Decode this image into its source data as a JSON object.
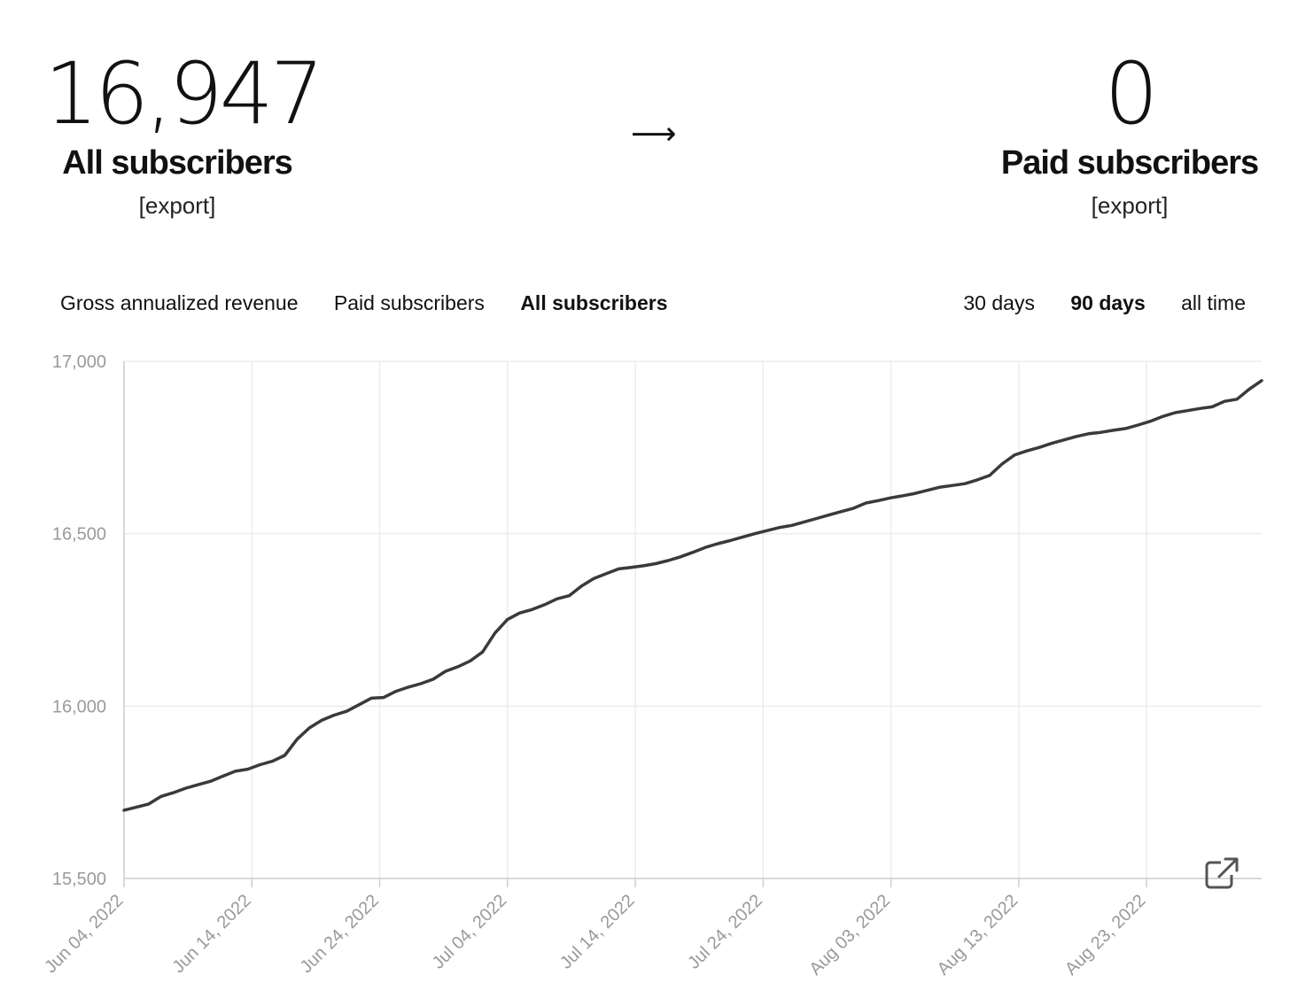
{
  "summary": {
    "all": {
      "value": "16,947",
      "label": "All subscribers",
      "export": "[export]"
    },
    "arrow": "⟶",
    "paid": {
      "value": "0",
      "label": "Paid subscribers",
      "export": "[export]"
    }
  },
  "metric_tabs": [
    {
      "label": "Gross annualized revenue",
      "active": false
    },
    {
      "label": "Paid subscribers",
      "active": false
    },
    {
      "label": "All subscribers",
      "active": true
    }
  ],
  "range_tabs": [
    {
      "label": "30 days",
      "active": false
    },
    {
      "label": "90 days",
      "active": true
    },
    {
      "label": "all time",
      "active": false
    }
  ],
  "icons": {
    "open_external": "open-external-icon"
  },
  "colors": {
    "line": "#3a3a3a",
    "grid": "#ececec",
    "axis_text": "#9a9a9a"
  },
  "chart_data": {
    "type": "line",
    "title": "",
    "xlabel": "",
    "ylabel": "",
    "ylim": [
      15500,
      17000
    ],
    "y_ticks": [
      "15,500",
      "16,000",
      "16,500",
      "17,000"
    ],
    "x_ticks": [
      "Jun 04, 2022",
      "Jun 14, 2022",
      "Jun 24, 2022",
      "Jul 04, 2022",
      "Jul 14, 2022",
      "Jul 24, 2022",
      "Aug 03, 2022",
      "Aug 13, 2022",
      "Aug 23, 2022"
    ],
    "x_start": "2022-06-04",
    "x_end": "2022-09-01",
    "grid": true,
    "series": [
      {
        "values": [
          15698,
          15707,
          15716,
          15738,
          15749,
          15762,
          15772,
          15782,
          15797,
          15811,
          15817,
          15830,
          15840,
          15857,
          15904,
          15937,
          15959,
          15974,
          15985,
          16004,
          16023,
          16025,
          16043,
          16055,
          16065,
          16078,
          16101,
          16114,
          16131,
          16157,
          16212,
          16251,
          16270,
          16280,
          16294,
          16311,
          16320,
          16348,
          16370,
          16384,
          16398,
          16402,
          16407,
          16413,
          16422,
          16433,
          16446,
          16460,
          16471,
          16480,
          16490,
          16500,
          16509,
          16518,
          16524,
          16534,
          16544,
          16554,
          16564,
          16574,
          16589,
          16596,
          16604,
          16610,
          16617,
          16626,
          16635,
          16640,
          16645,
          16656,
          16669,
          16702,
          16728,
          16740,
          16750,
          16762,
          16772,
          16782,
          16790,
          16794,
          16800,
          16805,
          16815,
          16826,
          16840,
          16851,
          16857,
          16863,
          16868,
          16884,
          16890,
          16919,
          16944
        ]
      }
    ]
  }
}
